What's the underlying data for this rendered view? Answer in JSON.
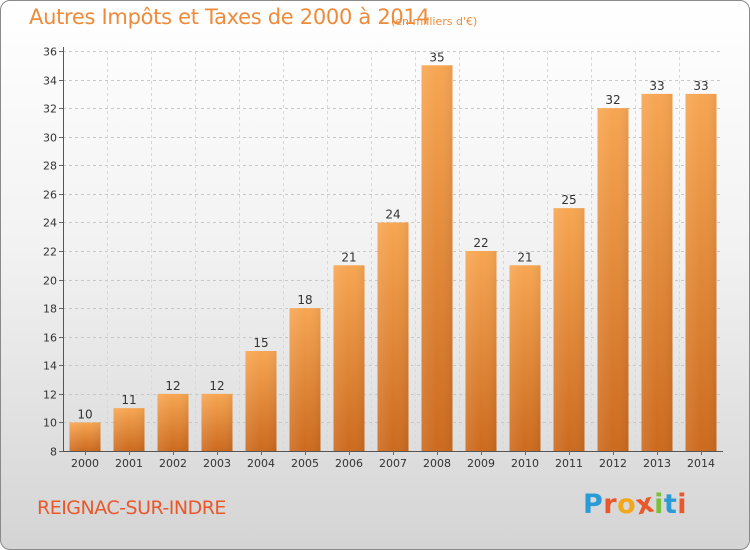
{
  "header": {
    "title": "Autres Impôts et Taxes de 2000 à 2014",
    "subtitle": "(en milliers d'€)"
  },
  "footer": {
    "commune": "REIGNAC-SUR-INDRE",
    "logo_text": "Proxiti"
  },
  "colors": {
    "bar_light": "#f7a652",
    "bar_dark": "#cc6a1e",
    "accent": "#ee8b3a",
    "logo": [
      "#2a9bd6",
      "#e8582a",
      "#f2a71b",
      "#e8582a",
      "#7cbf3a",
      "#2a9bd6",
      "#e8582a"
    ]
  },
  "chart_data": {
    "type": "bar",
    "title": "Autres Impôts et Taxes de 2000 à 2014",
    "subtitle": "(en milliers d'€)",
    "categories": [
      "2000",
      "2001",
      "2002",
      "2003",
      "2004",
      "2005",
      "2006",
      "2007",
      "2008",
      "2009",
      "2010",
      "2011",
      "2012",
      "2013",
      "2014"
    ],
    "values": [
      10,
      11,
      12,
      12,
      15,
      18,
      21,
      24,
      35,
      22,
      21,
      25,
      32,
      33,
      33
    ],
    "ylim": [
      8,
      36
    ],
    "yticks": [
      8,
      10,
      12,
      14,
      16,
      18,
      20,
      22,
      24,
      26,
      28,
      30,
      32,
      34,
      36
    ],
    "xlabel": "",
    "ylabel": "",
    "grid": true,
    "data_labels": true
  }
}
